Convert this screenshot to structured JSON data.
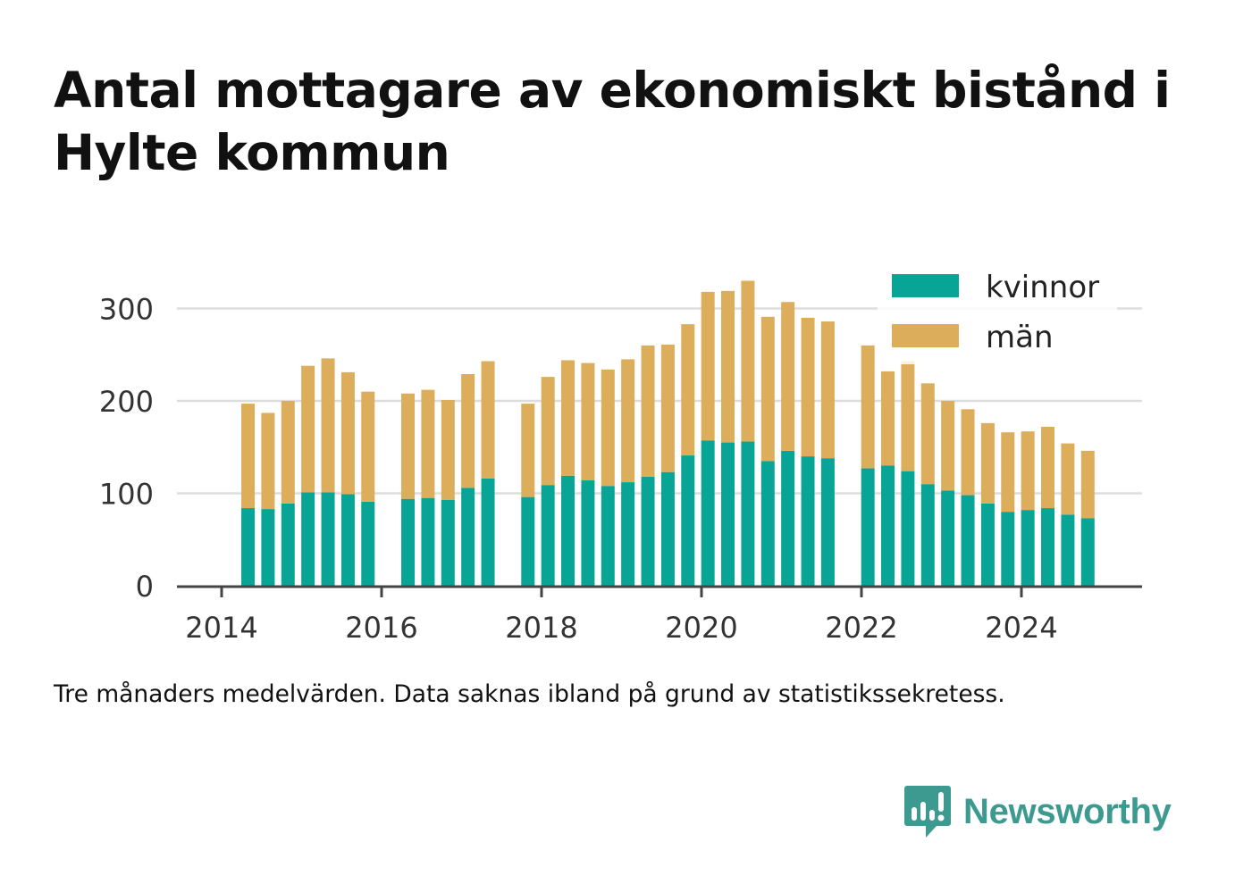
{
  "title": "Antal mottagare av ekonomiskt bistånd i Hylte kommun",
  "footnote": "Tre månaders medelvärden. Data saknas ibland på grund av statistikssekretess.",
  "brand": {
    "name": "Newsworthy",
    "color": "#3d9a90",
    "icon": "bar-chart-speech-bubble-icon"
  },
  "colors": {
    "kvinnor": "#08a496",
    "man": "#dcad5a",
    "grid": "#dddddd",
    "axis": "#444444",
    "tick_label": "#333333"
  },
  "chart_data": {
    "type": "bar",
    "stacked": true,
    "title": "Antal mottagare av ekonomiskt bistånd i Hylte kommun",
    "xlabel": "",
    "ylabel": "",
    "ylim": [
      0,
      330
    ],
    "xlim": [
      2013.6,
      2025.45
    ],
    "y_ticks": [
      0,
      100,
      200,
      300
    ],
    "x_ticks": [
      2014,
      2016,
      2018,
      2020,
      2022,
      2024
    ],
    "x_tick_labels": [
      "2014",
      "2016",
      "2018",
      "2020",
      "2022",
      "2024"
    ],
    "legend": {
      "position": "top-right"
    },
    "x": [
      2014.33,
      2014.58,
      2014.83,
      2015.08,
      2015.33,
      2015.58,
      2015.83,
      2016.33,
      2016.58,
      2016.83,
      2017.08,
      2017.33,
      2017.83,
      2018.08,
      2018.33,
      2018.58,
      2018.83,
      2019.08,
      2019.33,
      2019.58,
      2019.83,
      2020.08,
      2020.33,
      2020.58,
      2020.83,
      2021.08,
      2021.33,
      2021.58,
      2022.08,
      2022.33,
      2022.58,
      2022.83,
      2023.08,
      2023.33,
      2023.58,
      2023.83,
      2024.08,
      2024.33,
      2024.58,
      2024.83
    ],
    "series": [
      {
        "name": "kvinnor",
        "key": "kvinnor",
        "values": [
          84,
          83,
          89,
          101,
          101,
          99,
          91,
          94,
          95,
          93,
          106,
          116,
          96,
          109,
          119,
          114,
          108,
          112,
          118,
          123,
          141,
          157,
          155,
          156,
          135,
          146,
          140,
          138,
          127,
          130,
          124,
          110,
          103,
          98,
          89,
          80,
          82,
          84,
          77,
          73
        ]
      },
      {
        "name": "män",
        "key": "man",
        "values": [
          113,
          104,
          111,
          137,
          145,
          132,
          119,
          114,
          117,
          108,
          123,
          127,
          101,
          117,
          125,
          127,
          126,
          133,
          142,
          138,
          142,
          161,
          164,
          174,
          156,
          161,
          150,
          148,
          133,
          102,
          119,
          109,
          97,
          93,
          87,
          86,
          85,
          88,
          77,
          73
        ]
      }
    ]
  }
}
